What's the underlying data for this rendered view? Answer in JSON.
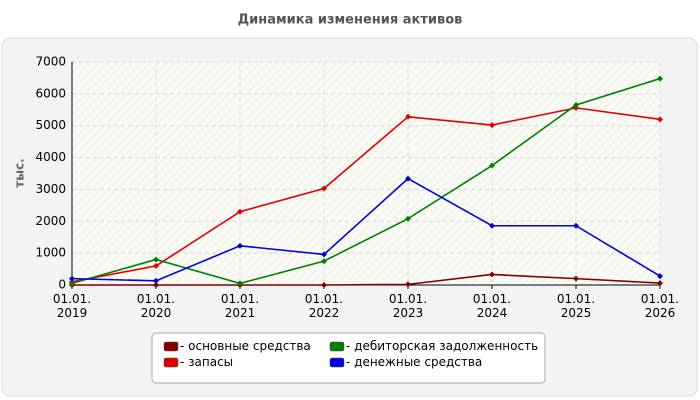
{
  "chart_data": {
    "type": "line",
    "title": "Динамика изменения активов",
    "y_label": "тыс.",
    "categories": [
      "01.01.\n2019",
      "01.01.\n2020",
      "01.01.\n2021",
      "01.01.\n2022",
      "01.01.\n2023",
      "01.01.\n2024",
      "01.01.\n2025",
      "01.01.\n2026"
    ],
    "series": [
      {
        "name": "- основные средства",
        "color": "#800000",
        "values": [
          0,
          0,
          0,
          0,
          20,
          330,
          200,
          60
        ]
      },
      {
        "name": "- запасы",
        "color": "#e00000",
        "values": [
          100,
          600,
          2300,
          3030,
          5280,
          5020,
          5560,
          5200
        ]
      },
      {
        "name": "- дебиторская задолженность",
        "color": "#008000",
        "values": [
          50,
          800,
          50,
          750,
          2080,
          3750,
          5650,
          6480
        ]
      },
      {
        "name": "- денежные средства",
        "color": "#0000e0",
        "values": [
          200,
          130,
          1230,
          960,
          3340,
          1860,
          1860,
          280
        ]
      }
    ],
    "ylim": [
      0,
      7000
    ],
    "yticks": [
      0,
      1000,
      2000,
      3000,
      4000,
      5000,
      6000,
      7000
    ],
    "grid": true,
    "legend": "bottom"
  }
}
